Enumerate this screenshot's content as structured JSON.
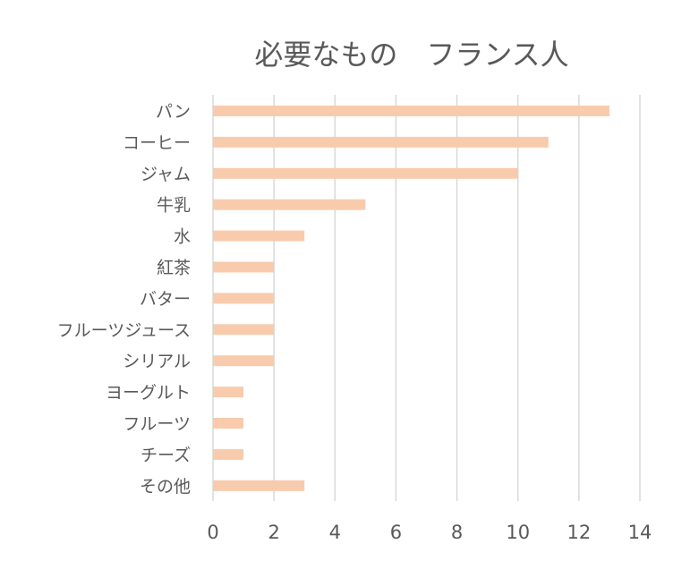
{
  "chart_data": {
    "type": "bar",
    "orientation": "horizontal",
    "title": "必要なもの　フランス人",
    "xlabel": "",
    "ylabel": "",
    "categories": [
      "パン",
      "コーヒー",
      "ジャム",
      "牛乳",
      "水",
      "紅茶",
      "バター",
      "フルーツジュース",
      "シリアル",
      "ヨーグルト",
      "フルーツ",
      "チーズ",
      "その他"
    ],
    "values": [
      13,
      11,
      10,
      5,
      3,
      2,
      2,
      2,
      2,
      1,
      1,
      1,
      3
    ],
    "xlim": [
      0,
      14
    ],
    "xticks": [
      "0",
      "2",
      "4",
      "6",
      "8",
      "10",
      "12",
      "14"
    ],
    "grid": true,
    "legend": "none",
    "bar_color": "#F8CBAD"
  }
}
